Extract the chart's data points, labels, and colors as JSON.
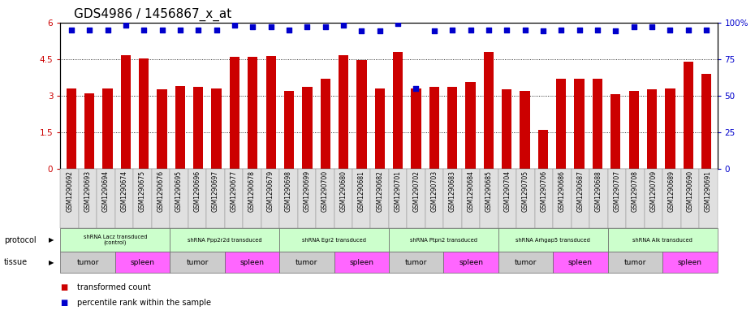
{
  "title": "GDS4986 / 1456867_x_at",
  "samples": [
    "GSM1290692",
    "GSM1290693",
    "GSM1290694",
    "GSM1290674",
    "GSM1290675",
    "GSM1290676",
    "GSM1290695",
    "GSM1290696",
    "GSM1290697",
    "GSM1290677",
    "GSM1290678",
    "GSM1290679",
    "GSM1290698",
    "GSM1290699",
    "GSM1290700",
    "GSM1290680",
    "GSM1290681",
    "GSM1290682",
    "GSM1290701",
    "GSM1290702",
    "GSM1290703",
    "GSM1290683",
    "GSM1290684",
    "GSM1290685",
    "GSM1290704",
    "GSM1290705",
    "GSM1290706",
    "GSM1290686",
    "GSM1290687",
    "GSM1290688",
    "GSM1290707",
    "GSM1290708",
    "GSM1290709",
    "GSM1290689",
    "GSM1290690",
    "GSM1290691"
  ],
  "bar_values": [
    3.3,
    3.1,
    3.3,
    4.65,
    4.52,
    3.25,
    3.4,
    3.35,
    3.3,
    4.58,
    4.6,
    4.62,
    3.2,
    3.35,
    3.7,
    4.65,
    4.45,
    3.3,
    4.8,
    3.3,
    3.35,
    3.35,
    3.55,
    4.8,
    3.25,
    3.2,
    1.6,
    3.7,
    3.7,
    3.7,
    3.05,
    3.2,
    3.25,
    3.3,
    4.4,
    3.9
  ],
  "percentile_values": [
    95,
    95,
    95,
    98,
    95,
    95,
    95,
    95,
    95,
    98,
    97,
    97,
    95,
    97,
    97,
    98,
    94,
    94,
    99,
    55,
    94,
    95,
    95,
    95,
    95,
    95,
    94,
    95,
    95,
    95,
    94,
    97,
    97,
    95,
    95,
    95
  ],
  "ylim_left": [
    0,
    6
  ],
  "ylim_right": [
    0,
    100
  ],
  "yticks_left": [
    0,
    1.5,
    3.0,
    4.5,
    6.0
  ],
  "ytick_labels_left": [
    "0",
    "1.5",
    "3",
    "4.5",
    "6"
  ],
  "yticks_right": [
    0,
    25,
    50,
    75,
    100
  ],
  "ytick_labels_right": [
    "0",
    "25",
    "50",
    "75",
    "100%"
  ],
  "bar_color": "#cc0000",
  "dot_color": "#0000cc",
  "protocol_groups": [
    {
      "label": "shRNA Lacz transduced\n(control)",
      "start": 0,
      "end": 5,
      "color": "#ccffcc"
    },
    {
      "label": "shRNA Ppp2r2d transduced",
      "start": 6,
      "end": 11,
      "color": "#ccffcc"
    },
    {
      "label": "shRNA Egr2 transduced",
      "start": 12,
      "end": 17,
      "color": "#ccffcc"
    },
    {
      "label": "shRNA Ptpn2 transduced",
      "start": 18,
      "end": 23,
      "color": "#ccffcc"
    },
    {
      "label": "shRNA Arhgap5 transduced",
      "start": 24,
      "end": 29,
      "color": "#ccffcc"
    },
    {
      "label": "shRNA Alk transduced",
      "start": 30,
      "end": 35,
      "color": "#ccffcc"
    }
  ],
  "tissue_groups": [
    {
      "label": "tumor",
      "start": 0,
      "end": 2,
      "color": "#cccccc"
    },
    {
      "label": "spleen",
      "start": 3,
      "end": 5,
      "color": "#ff66ff"
    },
    {
      "label": "tumor",
      "start": 6,
      "end": 8,
      "color": "#cccccc"
    },
    {
      "label": "spleen",
      "start": 9,
      "end": 11,
      "color": "#ff66ff"
    },
    {
      "label": "tumor",
      "start": 12,
      "end": 14,
      "color": "#cccccc"
    },
    {
      "label": "spleen",
      "start": 15,
      "end": 17,
      "color": "#ff66ff"
    },
    {
      "label": "tumor",
      "start": 18,
      "end": 20,
      "color": "#cccccc"
    },
    {
      "label": "spleen",
      "start": 21,
      "end": 23,
      "color": "#ff66ff"
    },
    {
      "label": "tumor",
      "start": 24,
      "end": 26,
      "color": "#cccccc"
    },
    {
      "label": "spleen",
      "start": 27,
      "end": 29,
      "color": "#ff66ff"
    },
    {
      "label": "tumor",
      "start": 30,
      "end": 32,
      "color": "#cccccc"
    },
    {
      "label": "spleen",
      "start": 33,
      "end": 35,
      "color": "#ff66ff"
    }
  ],
  "bg_color": "#ffffff",
  "axis_label_color_left": "#cc0000",
  "axis_label_color_right": "#0000cc",
  "title_fontsize": 11,
  "tick_fontsize": 7.5,
  "bar_width": 0.55,
  "sample_box_color": "#e0e0e0",
  "sample_box_edge": "#888888"
}
